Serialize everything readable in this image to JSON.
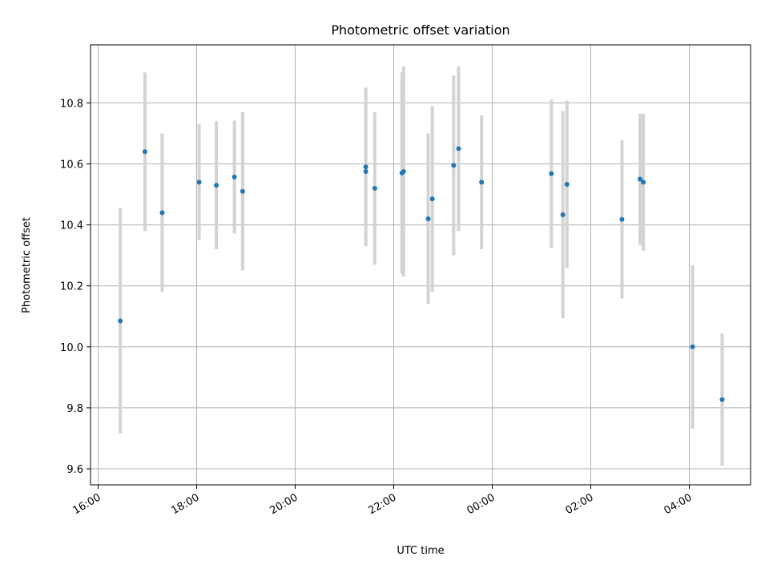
{
  "chart_data": {
    "type": "scatter",
    "title": "Photometric offset variation",
    "xlabel": "UTC time",
    "ylabel": "Photometric offset",
    "x_tick_labels": [
      "16:00",
      "18:00",
      "20:00",
      "22:00",
      "00:00",
      "02:00",
      "04:00"
    ],
    "y_tick_labels": [
      "9.6",
      "9.8",
      "10.0",
      "10.2",
      "10.4",
      "10.6",
      "10.8"
    ],
    "grid": true,
    "colors": {
      "point": "#1f77b4",
      "errorbar": "#d3d3d3",
      "grid": "#b0b0b0"
    },
    "points": [
      {
        "x": "16:27",
        "y": 10.085,
        "err": 0.37
      },
      {
        "x": "16:57",
        "y": 10.64,
        "err": 0.26
      },
      {
        "x": "17:18",
        "y": 10.44,
        "err": 0.26
      },
      {
        "x": "18:03",
        "y": 10.54,
        "err": 0.19
      },
      {
        "x": "18:24",
        "y": 10.53,
        "err": 0.21
      },
      {
        "x": "18:46",
        "y": 10.557,
        "err": 0.185
      },
      {
        "x": "18:56",
        "y": 10.51,
        "err": 0.26
      },
      {
        "x": "21:26",
        "y": 10.59,
        "err": 0.26
      },
      {
        "x": "21:26",
        "y": 10.575,
        "err": 0.0
      },
      {
        "x": "21:37",
        "y": 10.52,
        "err": 0.25
      },
      {
        "x": "22:10",
        "y": 10.57,
        "err": 0.33
      },
      {
        "x": "22:12",
        "y": 10.575,
        "err": 0.345
      },
      {
        "x": "22:42",
        "y": 10.42,
        "err": 0.28
      },
      {
        "x": "22:47",
        "y": 10.485,
        "err": 0.305
      },
      {
        "x": "23:13",
        "y": 10.595,
        "err": 0.295
      },
      {
        "x": "23:19",
        "y": 10.65,
        "err": 0.27
      },
      {
        "x": "23:47",
        "y": 10.54,
        "err": 0.22
      },
      {
        "x": "01:12",
        "y": 10.568,
        "err": 0.243
      },
      {
        "x": "01:26",
        "y": 10.433,
        "err": 0.34
      },
      {
        "x": "01:31",
        "y": 10.533,
        "err": 0.275
      },
      {
        "x": "02:38",
        "y": 10.418,
        "err": 0.26
      },
      {
        "x": "03:00",
        "y": 10.55,
        "err": 0.215
      },
      {
        "x": "03:04",
        "y": 10.54,
        "err": 0.225
      },
      {
        "x": "04:04",
        "y": 10.0,
        "err": 0.268
      },
      {
        "x": "04:40",
        "y": 9.827,
        "err": 0.217
      }
    ]
  }
}
